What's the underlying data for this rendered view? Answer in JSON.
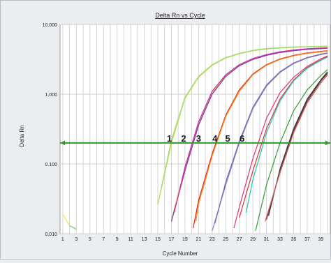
{
  "chart_data": {
    "type": "line",
    "title": "Delta Rn vs Cycle",
    "xlabel": "Cycle Number",
    "ylabel": "Delta Rn",
    "y_scale": "log",
    "ylim": [
      0.01,
      10
    ],
    "xlim": [
      0.6,
      40.4
    ],
    "x_ticks": [
      1,
      3,
      5,
      7,
      9,
      11,
      13,
      15,
      17,
      19,
      21,
      23,
      25,
      27,
      29,
      31,
      33,
      35,
      37,
      39
    ],
    "y_ticks": [
      {
        "value": 10,
        "label": "10.000"
      },
      {
        "value": 1,
        "label": "1.000"
      },
      {
        "value": 0.1,
        "label": "0.100"
      },
      {
        "value": 0.01,
        "label": "0.010"
      }
    ],
    "grid": true,
    "threshold": {
      "value": 0.2,
      "color": "#2e9a2e"
    },
    "threshold_labels": [
      {
        "text": "1",
        "x": 16.7
      },
      {
        "text": "2",
        "x": 18.8
      },
      {
        "text": "3",
        "x": 21.0
      },
      {
        "text": "4",
        "x": 23.4
      },
      {
        "text": "5",
        "x": 25.3
      },
      {
        "text": "6",
        "x": 27.4
      }
    ],
    "series": [
      {
        "color": "#f2e84a",
        "x": [
          1,
          2,
          3
        ],
        "y": [
          0.019,
          0.013,
          0.012
        ]
      },
      {
        "color": "#6fd0e6",
        "x": [
          2,
          3
        ],
        "y": [
          0.013,
          0.0115
        ]
      },
      {
        "color": "#c8d44a",
        "x": [
          15,
          17,
          19,
          21,
          23,
          25,
          27,
          29,
          31,
          33,
          35,
          37,
          39,
          40
        ],
        "y": [
          0.026,
          0.2,
          0.88,
          1.75,
          2.6,
          3.3,
          3.8,
          4.2,
          4.45,
          4.6,
          4.7,
          4.78,
          4.82,
          4.84
        ]
      },
      {
        "color": "#98e06a",
        "x": [
          15.4,
          17,
          19,
          21,
          23,
          25,
          27,
          29,
          31,
          33,
          35,
          37,
          39,
          40
        ],
        "y": [
          0.04,
          0.22,
          0.9,
          1.8,
          2.65,
          3.35,
          3.85,
          4.25,
          4.5,
          4.65,
          4.75,
          4.8,
          4.85,
          4.86
        ]
      },
      {
        "color": "#e2e040",
        "x": [
          17,
          19,
          21,
          23,
          25,
          27,
          29,
          31,
          33,
          35,
          37,
          39,
          40
        ],
        "y": [
          0.016,
          0.085,
          0.38,
          1.05,
          1.85,
          2.6,
          3.2,
          3.65,
          4.0,
          4.25,
          4.45,
          4.55,
          4.6
        ]
      },
      {
        "color": "#7a3fb8",
        "x": [
          17,
          19,
          21,
          23,
          25,
          27,
          29,
          31,
          33,
          35,
          37,
          39,
          40
        ],
        "y": [
          0.015,
          0.08,
          0.36,
          1.0,
          1.8,
          2.55,
          3.15,
          3.6,
          3.95,
          4.2,
          4.4,
          4.5,
          4.55
        ]
      },
      {
        "color": "#d0309a",
        "x": [
          17.4,
          19,
          21,
          23,
          25,
          27,
          29,
          31,
          33,
          35,
          37,
          39,
          40
        ],
        "y": [
          0.02,
          0.09,
          0.4,
          1.1,
          1.9,
          2.65,
          3.25,
          3.7,
          4.05,
          4.3,
          4.48,
          4.58,
          4.62
        ]
      },
      {
        "color": "#e03020",
        "x": [
          20.2,
          21,
          23,
          25,
          27,
          29,
          31,
          33,
          35,
          37,
          39,
          40
        ],
        "y": [
          0.012,
          0.03,
          0.14,
          0.5,
          1.15,
          1.95,
          2.65,
          3.2,
          3.6,
          3.9,
          4.1,
          4.2
        ]
      },
      {
        "color": "#f08a20",
        "x": [
          20.6,
          21,
          23,
          25,
          27,
          29,
          31,
          33,
          35,
          37,
          39,
          40
        ],
        "y": [
          0.015,
          0.027,
          0.13,
          0.48,
          1.1,
          1.9,
          2.6,
          3.15,
          3.55,
          3.85,
          4.05,
          4.15
        ]
      },
      {
        "color": "#8a8ac8",
        "x": [
          23,
          25,
          27,
          29,
          31,
          33,
          35,
          37,
          39,
          40
        ],
        "y": [
          0.011,
          0.05,
          0.2,
          0.62,
          1.3,
          2.05,
          2.75,
          3.3,
          3.7,
          3.85
        ]
      },
      {
        "color": "#7a6ab0",
        "x": [
          23.4,
          25,
          27,
          29,
          31,
          33,
          35,
          37,
          39,
          40
        ],
        "y": [
          0.014,
          0.055,
          0.21,
          0.65,
          1.35,
          2.1,
          2.8,
          3.35,
          3.75,
          3.9
        ]
      },
      {
        "color": "#e04080",
        "x": [
          26.2,
          27,
          29,
          31,
          33,
          35,
          37,
          39,
          40
        ],
        "y": [
          0.012,
          0.024,
          0.12,
          0.45,
          1.05,
          1.75,
          2.5,
          3.2,
          3.55
        ]
      },
      {
        "color": "#d04040",
        "x": [
          27,
          29,
          31,
          33,
          35,
          37,
          39,
          40
        ],
        "y": [
          0.017,
          0.08,
          0.32,
          0.85,
          1.6,
          2.4,
          3.1,
          3.45
        ]
      },
      {
        "color": "#30c8b0",
        "x": [
          28,
          29,
          31,
          33,
          35,
          37,
          39,
          40
        ],
        "y": [
          0.02,
          0.06,
          0.28,
          0.8,
          1.55,
          2.35,
          3.05,
          3.4
        ]
      },
      {
        "color": "#40a040",
        "x": [
          29.4,
          31,
          33,
          35,
          37,
          39,
          40
        ],
        "y": [
          0.011,
          0.05,
          0.2,
          0.58,
          1.15,
          1.85,
          2.25
        ]
      },
      {
        "color": "#6a2f2f",
        "x": [
          31,
          33,
          35,
          37,
          39,
          40
        ],
        "y": [
          0.016,
          0.08,
          0.3,
          0.8,
          1.55,
          2.0
        ]
      },
      {
        "color": "#3a3a3a",
        "x": [
          31.3,
          33,
          35,
          37,
          39,
          40
        ],
        "y": [
          0.018,
          0.085,
          0.32,
          0.85,
          1.6,
          2.1
        ]
      },
      {
        "color": "#d06060",
        "x": [
          30.8,
          33,
          35,
          37,
          39,
          40
        ],
        "y": [
          0.015,
          0.075,
          0.28,
          0.75,
          1.45,
          1.9
        ]
      }
    ]
  }
}
